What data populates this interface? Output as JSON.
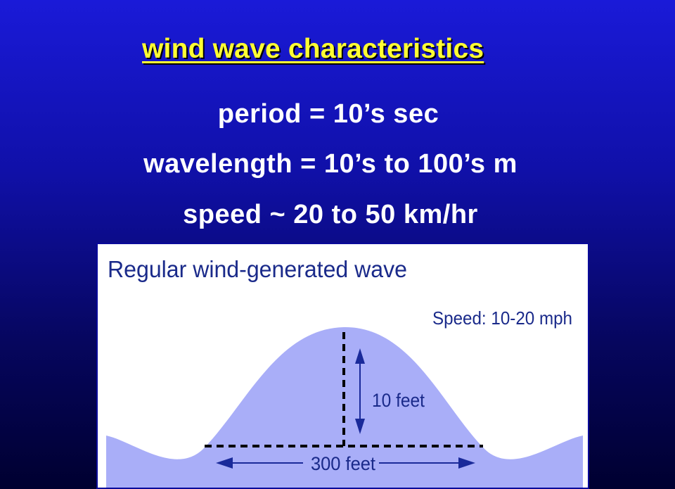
{
  "slide": {
    "title": "wind wave characteristics",
    "bullets": [
      "period = 10’s sec",
      "wavelength = 10’s to 100’s m",
      "speed ~ 20 to 50 km/hr"
    ]
  },
  "figure": {
    "title": "Regular wind-generated wave",
    "speed_label": "Speed: 10-20 mph",
    "height_label": "10 feet",
    "length_label": "300 feet"
  },
  "colors": {
    "background_top": "#1a1ad8",
    "background_bottom": "#000030",
    "title": "#ffff33",
    "bullet_text": "#ffffff",
    "wave_fill": "#a9aef8",
    "diagram_text": "#1a2a8a",
    "arrow": "#1a2a9a"
  }
}
